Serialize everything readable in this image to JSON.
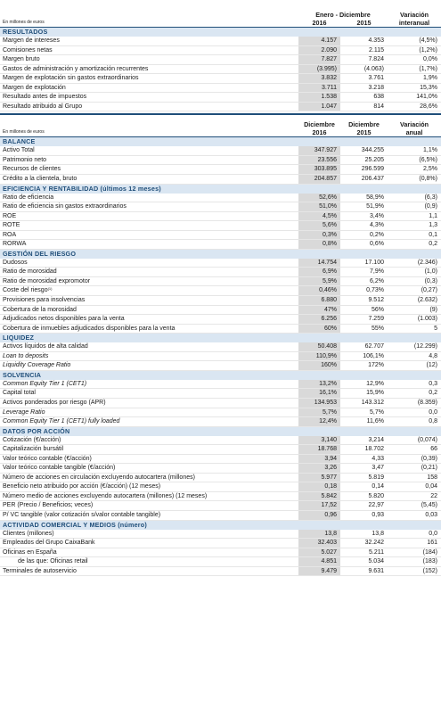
{
  "header1": {
    "unit": "En millones de euros",
    "period": "Enero - Diciembre",
    "col1": "2016",
    "col2": "2015",
    "col3a": "Variación",
    "col3b": "interanual"
  },
  "header2": {
    "unit": "En millones de euros",
    "col1a": "Diciembre",
    "col1b": "2016",
    "col2a": "Diciembre",
    "col2b": "2015",
    "col3a": "Variación",
    "col3b": "anual"
  },
  "sections": [
    {
      "title": "RESULTADOS",
      "rows": [
        [
          "Margen de intereses",
          "4.157",
          "4.353",
          "(4,5%)"
        ],
        [
          "Comisiones netas",
          "2.090",
          "2.115",
          "(1,2%)"
        ],
        [
          "Margen bruto",
          "7.827",
          "7.824",
          "0,0%"
        ],
        [
          "Gastos de administración y amortización recurrentes",
          "(3.995)",
          "(4.063)",
          "(1,7%)"
        ],
        [
          "Margen de explotación sin gastos extraordinarios",
          "3.832",
          "3.761",
          "1,9%"
        ],
        [
          "Margen de explotación",
          "3.711",
          "3.218",
          "15,3%"
        ],
        [
          "Resultado antes de impuestos",
          "1.538",
          "638",
          "141,0%"
        ],
        [
          "Resultado atribuido al Grupo",
          "1.047",
          "814",
          "28,6%"
        ]
      ]
    },
    {
      "title": "BALANCE",
      "rows": [
        [
          "Activo Total",
          "347.927",
          "344.255",
          "1,1%"
        ],
        [
          "Patrimonio neto",
          "23.556",
          "25.205",
          "(6,5%)"
        ],
        [
          "Recursos de clientes",
          "303.895",
          "296.599",
          "2,5%"
        ],
        [
          "Crédito a la clientela, bruto",
          "204.857",
          "206.437",
          "(0,8%)"
        ]
      ]
    },
    {
      "title": "EFICIENCIA Y RENTABILIDAD (últimos 12 meses)",
      "rows": [
        [
          "Ratio de eficiencia",
          "52,6%",
          "58,9%",
          "(6,3)"
        ],
        [
          "Ratio de eficiencia sin gastos extraordinarios",
          "51,0%",
          "51,9%",
          "(0,9)"
        ],
        [
          "ROE",
          "4,5%",
          "3,4%",
          "1,1"
        ],
        [
          "ROTE",
          "5,6%",
          "4,3%",
          "1,3"
        ],
        [
          "ROA",
          "0,3%",
          "0,2%",
          "0,1"
        ],
        [
          "RORWA",
          "0,8%",
          "0,6%",
          "0,2"
        ]
      ]
    },
    {
      "title": "GESTIÓN DEL RIESGO",
      "rows": [
        [
          "Dudosos",
          "14.754",
          "17.100",
          "(2.346)"
        ],
        [
          "Ratio de morosidad",
          "6,9%",
          "7,9%",
          "(1,0)"
        ],
        [
          "Ratio de morosidad expromotor",
          "5,9%",
          "6,2%",
          "(0,3)"
        ],
        [
          "Coste del riesgo",
          "0,46%",
          "0,73%",
          "(0,27)"
        ],
        [
          "Provisiones para insolvencias",
          "6.880",
          "9.512",
          "(2.632)"
        ],
        [
          "Cobertura de la morosidad",
          "47%",
          "56%",
          "(9)"
        ],
        [
          "Adjudicados netos disponibles para la venta",
          "6.256",
          "7.259",
          "(1.003)"
        ],
        [
          "Cobertura de inmuebles adjudicados disponibles para la venta",
          "60%",
          "55%",
          "5"
        ]
      ]
    },
    {
      "title": "LIQUIDEZ",
      "rows": [
        [
          "Activos líquidos de alta calidad",
          "50.408",
          "62.707",
          "(12.299)"
        ],
        [
          "Loan to deposits",
          "110,9%",
          "106,1%",
          "4,8"
        ],
        [
          "Liquidity Coverage Ratio",
          "160%",
          "172%",
          "(12)"
        ]
      ]
    },
    {
      "title": "SOLVENCIA",
      "rows": [
        [
          "Common Equity Tier 1 (CET1)",
          "13,2%",
          "12,9%",
          "0,3"
        ],
        [
          "Capital total",
          "16,1%",
          "15,9%",
          "0,2"
        ],
        [
          "Activos ponderados por riesgo (APR)",
          "134.953",
          "143.312",
          "(8.359)"
        ],
        [
          "Leverage Ratio",
          "5,7%",
          "5,7%",
          "0,0"
        ],
        [
          "Common Equity Tier 1 (CET1) fully loaded",
          "12,4%",
          "11,6%",
          "0,8"
        ]
      ]
    },
    {
      "title": "DATOS POR ACCIÓN",
      "rows": [
        [
          "Cotización (€/acción)",
          "3,140",
          "3,214",
          "(0,074)"
        ],
        [
          "Capitalización bursátil",
          "18.768",
          "18.702",
          "66"
        ],
        [
          "Valor teórico contable (€/acción)",
          "3,94",
          "4,33",
          "(0,39)"
        ],
        [
          "Valor teórico contable tangible (€/acción)",
          "3,26",
          "3,47",
          "(0,21)"
        ],
        [
          "Número de acciones en circulación excluyendo autocartera (millones)",
          "5.977",
          "5.819",
          "158"
        ],
        [
          "Beneficio neto atribuido por acción (€/acción) (12 meses)",
          "0,18",
          "0,14",
          "0,04"
        ],
        [
          "Número medio de acciones excluyendo autocartera (millones) (12 meses)",
          "5.842",
          "5.820",
          "22"
        ],
        [
          "PER (Precio / Beneficios; veces)",
          "17,52",
          "22,97",
          "(5,45)"
        ],
        [
          "P/ VC tangible (valor cotización s/valor contable tangible)",
          "0,96",
          "0,93",
          "0,03"
        ]
      ]
    },
    {
      "title": "ACTIVIDAD COMERCIAL Y MEDIOS (número)",
      "rows": [
        [
          "Clientes (millones)",
          "13,8",
          "13,8",
          "0,0"
        ],
        [
          "Empleados del Grupo CaixaBank",
          "32.403",
          "32.242",
          "161"
        ],
        [
          "Oficinas en España",
          "5.027",
          "5.211",
          "(184)"
        ],
        [
          "de las que: Oficinas retail",
          "4.851",
          "5.034",
          "(183)"
        ],
        [
          "Terminales de autoservicio",
          "9.479",
          "9.631",
          "(152)"
        ]
      ]
    }
  ],
  "footnote_marker": "(1)"
}
